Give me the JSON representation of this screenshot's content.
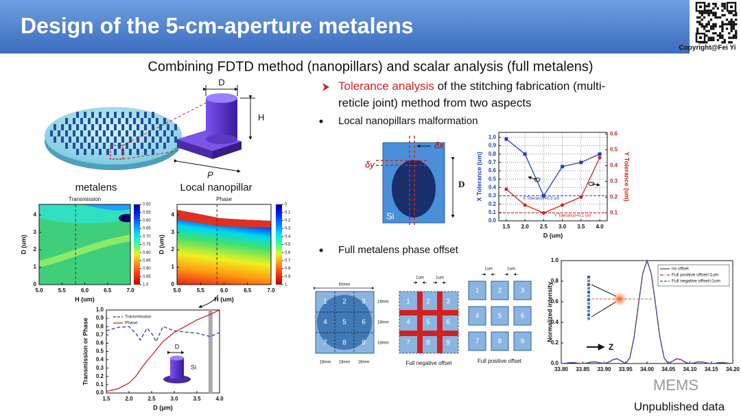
{
  "header": {
    "title": "Design of the 5-cm-aperture metalens",
    "copyright": "Copyright@Fei  Yi"
  },
  "subtitle": "Combining FDTD method (nanopillars) and scalar analysis (full metalens)",
  "left": {
    "metalens_label": "metalens",
    "nanopillar_label": "Local nanopillar",
    "dim_d": "D",
    "dim_h": "H",
    "dim_p": "P"
  },
  "right": {
    "tolerance_highlight": "Tolerance analysis",
    "tolerance_line_1": " of the stitching fabrication (multi-",
    "tolerance_line_2": "reticle joint) method from two aspects",
    "bullet_1": "Local nanopillars malformation",
    "bullet_2": "Full metalens phase offset"
  },
  "diagrams": {
    "malformation": {
      "dx": "δx",
      "dy": "δy",
      "d": "D",
      "si": "Si"
    },
    "grids": {
      "cells": [
        "1",
        "2",
        "3",
        "4",
        "5",
        "6",
        "7",
        "8",
        "9"
      ],
      "size_total": "50mm",
      "size_cell": "18mm",
      "gap": "1um",
      "negative": "Full negative offset",
      "positive": "Full positive offset"
    }
  },
  "footer": {
    "watermark": "MEMS",
    "note": "Unpublished data"
  },
  "chart_data": [
    {
      "type": "heatmap",
      "title": "Transmission",
      "x_label": "H (um)",
      "y_label": "D (um)",
      "xlim": [
        5,
        7
      ],
      "xticks": [
        {
          "value": 5,
          "label": "5.0"
        },
        5.5,
        {
          "value": 6,
          "label": "6.0"
        },
        6.5,
        {
          "value": 7,
          "label": "7.0"
        }
      ],
      "ylim": [
        0,
        4.6
      ],
      "yticks": [
        0,
        1,
        2,
        3,
        4
      ],
      "dashed_x": 5.8,
      "colorbar_lim": [
        0.5,
        1.0
      ],
      "colorbar_ticks": [
        {
          "value": 0.5,
          "label": "0.50"
        },
        0.55,
        {
          "value": 0.6,
          "label": "0.60"
        },
        0.65,
        {
          "value": 0.7,
          "label": "0.70"
        },
        0.75,
        {
          "value": 0.8,
          "label": "0.80"
        },
        0.85,
        {
          "value": 0.9,
          "label": "0.90"
        },
        0.95,
        {
          "value": 1,
          "label": "1.0"
        }
      ]
    },
    {
      "type": "heatmap",
      "title": "Phase",
      "x_label": "H (um)",
      "y_label": "D (um)",
      "xlim": [
        5,
        7
      ],
      "xticks": [
        {
          "value": 5,
          "label": "5.0"
        },
        5.5,
        {
          "value": 6,
          "label": "6.0"
        },
        6.5,
        {
          "value": 7,
          "label": "7.0"
        }
      ],
      "ylim": [
        0,
        4.6
      ],
      "yticks": [
        0,
        1,
        2,
        3,
        4
      ],
      "dashed_x": 5.85,
      "colorbar_lim": [
        0,
        1
      ],
      "colorbar_ticks": [
        0,
        0.1,
        0.2,
        0.3,
        0.4,
        0.5,
        0.6,
        0.7,
        0.8,
        0.9,
        1
      ]
    },
    {
      "type": "line",
      "x_label": "D (μm)",
      "y_label": "Transmission or Phase",
      "legend": "upper left",
      "xlim": [
        1.5,
        4.0
      ],
      "xticks": [
        1.5,
        {
          "value": 2,
          "label": "2.0"
        },
        2.5,
        {
          "value": 3,
          "label": "3.0"
        },
        3.5,
        {
          "value": 4,
          "label": "4.0"
        }
      ],
      "ylim": [
        0,
        1.0
      ],
      "yticks": [
        {
          "value": 0,
          "label": "0.0"
        },
        0.1,
        0.2,
        0.3,
        0.4,
        0.5,
        0.6,
        0.7,
        0.8,
        0.9,
        {
          "value": 1,
          "label": "1.0"
        }
      ],
      "highlight_x": 3.8,
      "annotations": [
        "D",
        "Si"
      ],
      "x": [
        1.5,
        1.75,
        2.0,
        2.15,
        2.25,
        2.4,
        2.5,
        2.6,
        2.75,
        3.0,
        3.5,
        3.8,
        4.0
      ],
      "series": [
        {
          "name": "Transmission",
          "color": "#1f3fbf",
          "dash": true,
          "values": [
            0.75,
            0.79,
            0.8,
            0.72,
            0.64,
            0.78,
            0.72,
            0.62,
            0.8,
            0.75,
            0.72,
            0.68,
            0.73
          ]
        },
        {
          "name": "Phase",
          "color": "#d42020",
          "values": [
            0.02,
            0.05,
            0.12,
            0.2,
            0.28,
            0.39,
            0.45,
            0.52,
            0.62,
            0.73,
            0.88,
            0.95,
            1.0
          ]
        }
      ]
    },
    {
      "type": "line",
      "x_label": "D (um)",
      "y_label": "X Tolerance (um)",
      "y2_label": "Y Tolerance (um)",
      "grid": true,
      "xlim": [
        1.3,
        4.2
      ],
      "xticks": [
        1.5,
        {
          "value": 2,
          "label": "2.0"
        },
        2.5,
        {
          "value": 3,
          "label": "3.0"
        },
        3.5,
        {
          "value": 4,
          "label": "4.0"
        }
      ],
      "ylim": [
        0,
        1.06
      ],
      "yticks": [
        {
          "value": 0,
          "label": "0.0"
        },
        0.1,
        0.2,
        0.3,
        0.4,
        0.5,
        0.6,
        0.7,
        0.8,
        0.9,
        {
          "value": 1,
          "label": "1.0"
        }
      ],
      "y2lim": [
        0.05,
        0.61
      ],
      "y2ticks": [
        0.1,
        0.2,
        0.3,
        0.4,
        0.5,
        0.6
      ],
      "hlines": [
        {
          "value": 0.3,
          "axis": "y",
          "label": "X Tolerance=0.3 um",
          "color": "#1f3fbf"
        },
        {
          "value": 0.1,
          "axis": "y2",
          "label": "Y Tolerance=0.1 um",
          "color": "#d42020"
        }
      ],
      "x": [
        1.5,
        2.0,
        2.5,
        3.0,
        3.5,
        4.0
      ],
      "series": [
        {
          "color": "#1f3fbf",
          "marker": "square",
          "values": [
            0.98,
            0.8,
            0.3,
            0.65,
            0.7,
            0.8
          ]
        },
        {
          "color": "#d42020",
          "marker": "circle",
          "axis": "y2",
          "values": [
            0.25,
            0.15,
            0.1,
            0.15,
            0.2,
            0.45
          ]
        }
      ]
    },
    {
      "type": "line",
      "y_label": "Normalized intensity",
      "legend": "upper right",
      "annotations": [
        "Z"
      ],
      "xlim": [
        33.8,
        34.2
      ],
      "xticks": [
        {
          "value": 33.8,
          "label": "33.80"
        },
        33.85,
        {
          "value": 33.9,
          "label": "33.90"
        },
        33.95,
        {
          "value": 34,
          "label": "34.00"
        },
        34.05,
        {
          "value": 34.1,
          "label": "34.10"
        },
        34.15,
        {
          "value": 34.2,
          "label": "34.20"
        }
      ],
      "ylim": [
        0,
        1.0
      ],
      "yticks": [
        {
          "value": 0,
          "label": "0.0"
        },
        0.2,
        0.4,
        0.6,
        0.8,
        {
          "value": 1,
          "label": "1.0"
        }
      ],
      "x": [
        33.8,
        33.81,
        33.82,
        33.83,
        33.84,
        33.85,
        33.86,
        33.87,
        33.88,
        33.89,
        33.9,
        33.91,
        33.92,
        33.93,
        33.94,
        33.95,
        33.96,
        33.97,
        33.98,
        33.99,
        34.0,
        34.01,
        34.02,
        34.03,
        34.04,
        34.05,
        34.06,
        34.07,
        34.08,
        34.09,
        34.1,
        34.11,
        34.12,
        34.13,
        34.14,
        34.15,
        34.16,
        34.17,
        34.18,
        34.19,
        34.2
      ],
      "series": [
        {
          "name": "no offset",
          "color": "#555555",
          "values": [
            0,
            0.003,
            0.008,
            0.009,
            0.003,
            0,
            0.005,
            0.014,
            0.016,
            0.007,
            0,
            0.011,
            0.036,
            0.047,
            0.024,
            0,
            0.055,
            0.255,
            0.573,
            0.875,
            1,
            0.875,
            0.573,
            0.255,
            0.055,
            0,
            0.024,
            0.047,
            0.036,
            0.011,
            0,
            0.007,
            0.016,
            0.014,
            0.005,
            0,
            0.003,
            0.009,
            0.008,
            0.003,
            0
          ]
        },
        {
          "name": "Full positive offset=1um",
          "color": "#d42020",
          "dash": "dashdot",
          "values": [
            0,
            0.003,
            0.008,
            0.009,
            0.003,
            0,
            0.005,
            0.014,
            0.016,
            0.007,
            0,
            0.011,
            0.036,
            0.047,
            0.024,
            0,
            0.055,
            0.255,
            0.573,
            0.875,
            1,
            0.875,
            0.573,
            0.255,
            0.055,
            0,
            0.024,
            0.047,
            0.036,
            0.011,
            0,
            0.007,
            0.016,
            0.014,
            0.005,
            0,
            0.003,
            0.009,
            0.008,
            0.003,
            0
          ]
        },
        {
          "name": "Full negative offset=1um",
          "color": "#2a4fd0",
          "dash": "dash",
          "values": [
            0,
            0.003,
            0.008,
            0.009,
            0.003,
            0,
            0.005,
            0.014,
            0.016,
            0.007,
            0,
            0.011,
            0.036,
            0.047,
            0.024,
            0,
            0.055,
            0.255,
            0.573,
            0.875,
            1,
            0.875,
            0.573,
            0.255,
            0.055,
            0,
            0.024,
            0.047,
            0.036,
            0.011,
            0,
            0.007,
            0.016,
            0.014,
            0.005,
            0,
            0.003,
            0.009,
            0.008,
            0.003,
            0
          ]
        }
      ]
    }
  ]
}
